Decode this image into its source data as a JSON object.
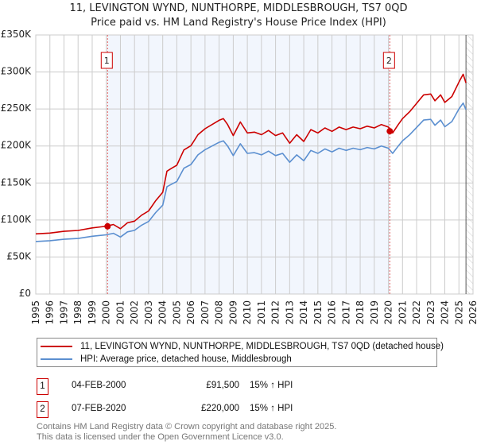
{
  "title": "11, LEVINGTON WYND, NUNTHORPE, MIDDLESBROUGH, TS7 0QD",
  "subtitle": "Price paid vs. HM Land Registry's House Price Index (HPI)",
  "chart_data": {
    "type": "line",
    "title": "11, LEVINGTON WYND, NUNTHORPE, MIDDLESBROUGH, TS7 0QD",
    "subtitle": "Price paid vs. HM Land Registry's House Price Index (HPI)",
    "xlim": [
      1995,
      2026
    ],
    "ylim": [
      0,
      350000
    ],
    "y_ticks": [
      0,
      50000,
      100000,
      150000,
      200000,
      250000,
      300000,
      350000
    ],
    "y_tick_labels": [
      "£0",
      "£50K",
      "£100K",
      "£150K",
      "£200K",
      "£250K",
      "£300K",
      "£350K"
    ],
    "x_ticks": [
      "1995",
      "1996",
      "1997",
      "1998",
      "1999",
      "2000",
      "2001",
      "2002",
      "2003",
      "2004",
      "2005",
      "2006",
      "2007",
      "2008",
      "2009",
      "2010",
      "2011",
      "2012",
      "2013",
      "2014",
      "2015",
      "2016",
      "2017",
      "2018",
      "2019",
      "2020",
      "2021",
      "2022",
      "2023",
      "2024",
      "2025",
      "2026"
    ],
    "grid": true,
    "x": [
      1995,
      1996,
      1997,
      1998,
      1999,
      2000,
      2000.5,
      2001,
      2001.5,
      2002,
      2002.5,
      2003,
      2003.5,
      2004,
      2004.3,
      2004.6,
      2005,
      2005.5,
      2006,
      2006.5,
      2007,
      2007.5,
      2008,
      2008.3,
      2008.6,
      2009,
      2009.5,
      2010,
      2010.5,
      2011,
      2011.5,
      2012,
      2012.5,
      2013,
      2013.5,
      2014,
      2014.5,
      2015,
      2015.5,
      2016,
      2016.5,
      2017,
      2017.5,
      2018,
      2018.5,
      2019,
      2019.5,
      2020,
      2020.3,
      2020.7,
      2021,
      2021.5,
      2022,
      2022.5,
      2023,
      2023.3,
      2023.7,
      2024,
      2024.5,
      2025,
      2025.3,
      2025.5
    ],
    "series": [
      {
        "name": "11, LEVINGTON WYND, NUNTHORPE, MIDDLESBROUGH, TS7 0QD (detached house)",
        "color": "#cc0000",
        "values": [
          81300,
          82400,
          84700,
          85900,
          89300,
          91600,
          93900,
          88200,
          96200,
          98500,
          106500,
          112200,
          126000,
          137400,
          166000,
          169500,
          174000,
          194700,
          200400,
          215300,
          223300,
          229000,
          234700,
          237000,
          229000,
          214100,
          232400,
          217600,
          218700,
          215300,
          221000,
          214100,
          217600,
          203800,
          215300,
          206100,
          222100,
          217600,
          224400,
          219800,
          225600,
          222100,
          225600,
          223300,
          226700,
          224400,
          229000,
          225600,
          217600,
          229000,
          237000,
          246200,
          257600,
          269100,
          270200,
          261100,
          269100,
          258800,
          266800,
          286300,
          297000,
          285100
        ]
      },
      {
        "name": "HPI: Average price, detached house, Middlesbrough",
        "color": "#5b8fd0",
        "values": [
          71000,
          72000,
          74000,
          75000,
          78000,
          80000,
          82000,
          77000,
          84000,
          86000,
          93000,
          98000,
          110000,
          120000,
          145000,
          148000,
          152000,
          170000,
          175000,
          188000,
          195000,
          200000,
          205000,
          207000,
          200000,
          187000,
          203000,
          190000,
          191000,
          188000,
          193000,
          187000,
          190000,
          178000,
          188000,
          180000,
          194000,
          190000,
          196000,
          192000,
          197000,
          194000,
          197000,
          195000,
          198000,
          196000,
          200000,
          197000,
          190000,
          200000,
          207000,
          215000,
          225000,
          235000,
          236000,
          228000,
          235000,
          226000,
          233000,
          250000,
          258000,
          249000
        ]
      }
    ],
    "sales": [
      {
        "label": "1",
        "x": 2000.09,
        "value": 91500
      },
      {
        "label": "2",
        "x": 2020.1,
        "value": 220000
      }
    ],
    "data_end": 2025.5,
    "legend_position": "below"
  },
  "legend": [
    {
      "label": "11, LEVINGTON WYND, NUNTHORPE, MIDDLESBROUGH, TS7 0QD (detached house)",
      "color": "#cc0000"
    },
    {
      "label": "HPI: Average price, detached house, Middlesbrough",
      "color": "#5b8fd0"
    }
  ],
  "sales_table": [
    {
      "num": "1",
      "date": "04-FEB-2000",
      "price": "£91,500",
      "hpi": "15% ↑ HPI"
    },
    {
      "num": "2",
      "date": "07-FEB-2020",
      "price": "£220,000",
      "hpi": "15% ↑ HPI"
    }
  ],
  "footer": {
    "line1": "Contains HM Land Registry data © Crown copyright and database right 2025.",
    "line2": "This data is licensed under the Open Government Licence v3.0."
  }
}
